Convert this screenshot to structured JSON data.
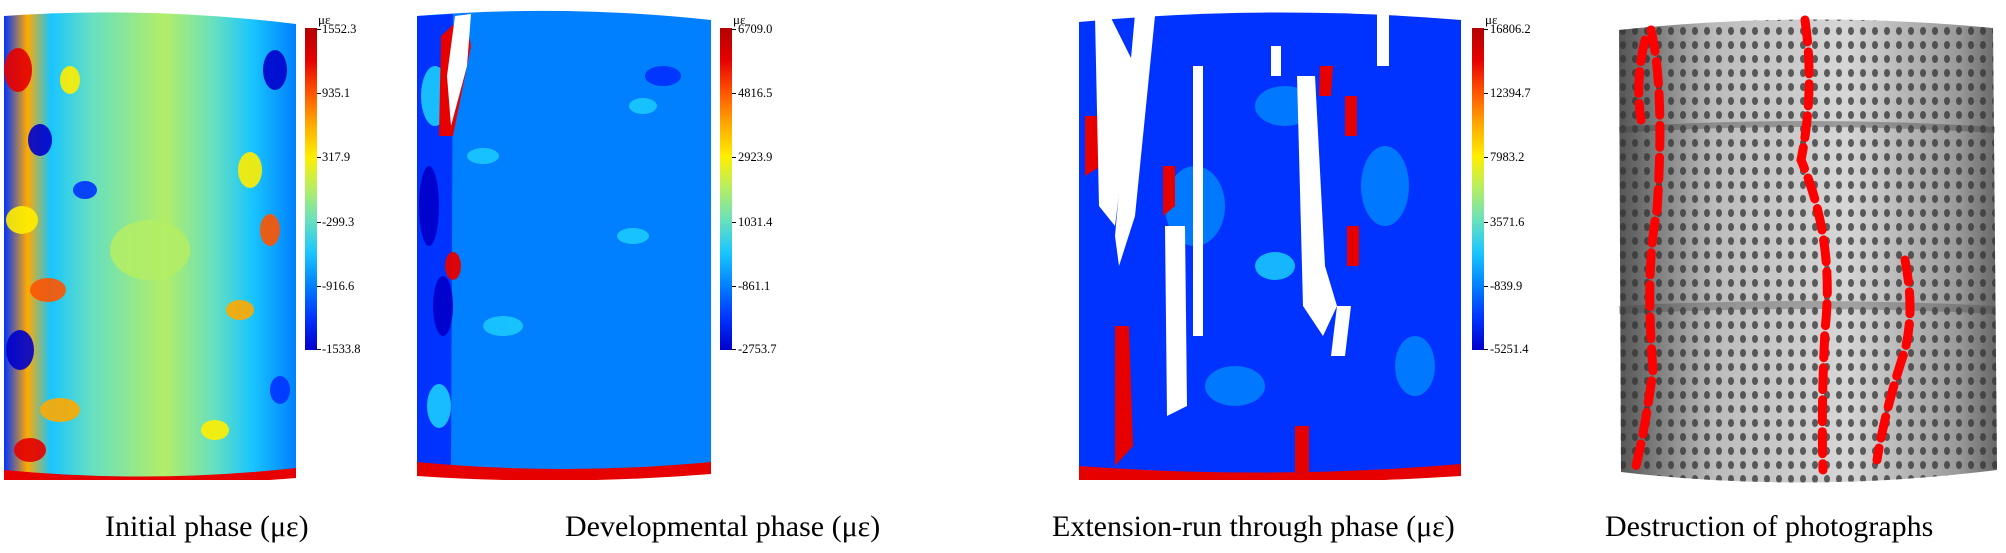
{
  "unit_symbol": "με",
  "panels": [
    {
      "id": "initial",
      "caption": "Initial phase (με)",
      "colorbar_ticks": [
        "1552.3",
        "935.1",
        "317.9",
        "-299.3",
        "-916.6",
        "-1533.8"
      ]
    },
    {
      "id": "developmental",
      "caption": "Developmental phase (με)",
      "colorbar_ticks": [
        "6709.0",
        "4816.5",
        "2923.9",
        "1031.4",
        "-861.1",
        "-2753.7"
      ]
    },
    {
      "id": "extension",
      "caption": "Extension-run through phase (με)",
      "colorbar_ticks": [
        "16806.2",
        "12394.7",
        "7983.2",
        "3571.6",
        "-839.9",
        "-5251.4"
      ]
    },
    {
      "id": "destruction",
      "caption": "Destruction of photographs"
    }
  ],
  "colors": {
    "scale": [
      "#0000cc",
      "#0033ff",
      "#0080ff",
      "#19c5ff",
      "#66e0c0",
      "#b3ee66",
      "#ffee00",
      "#ffaa00",
      "#ff5500",
      "#e60000",
      "#b30000"
    ],
    "crack_marker": "#ff0000"
  }
}
